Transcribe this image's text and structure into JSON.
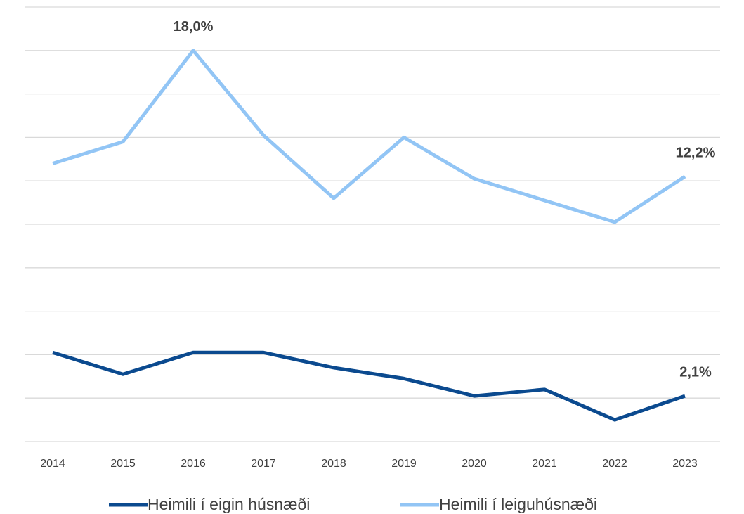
{
  "chart_data": {
    "type": "line",
    "categories": [
      "2014",
      "2015",
      "2016",
      "2017",
      "2018",
      "2019",
      "2020",
      "2021",
      "2022",
      "2023"
    ],
    "series": [
      {
        "name": "Heimili í eigin húsnæði",
        "color": "#0b4a8f",
        "values": [
          4.1,
          3.1,
          4.1,
          4.1,
          3.4,
          2.9,
          2.1,
          2.4,
          1.0,
          2.1
        ],
        "value_labels": [
          null,
          null,
          null,
          null,
          null,
          null,
          null,
          null,
          null,
          "2,1%"
        ]
      },
      {
        "name": "Heimili í leiguhúsnæði",
        "color": "#92c5f5",
        "values": [
          12.8,
          13.8,
          18.0,
          14.1,
          11.2,
          14.0,
          12.1,
          11.1,
          10.1,
          12.2
        ],
        "value_labels": [
          null,
          null,
          "18,0%",
          null,
          null,
          null,
          null,
          null,
          null,
          "12,2%"
        ]
      }
    ],
    "ylim": [
      0,
      20
    ],
    "yticks": [
      0,
      2,
      4,
      6,
      8,
      10,
      12,
      14,
      16,
      18,
      20
    ],
    "grid": true,
    "legend": "bottom"
  }
}
